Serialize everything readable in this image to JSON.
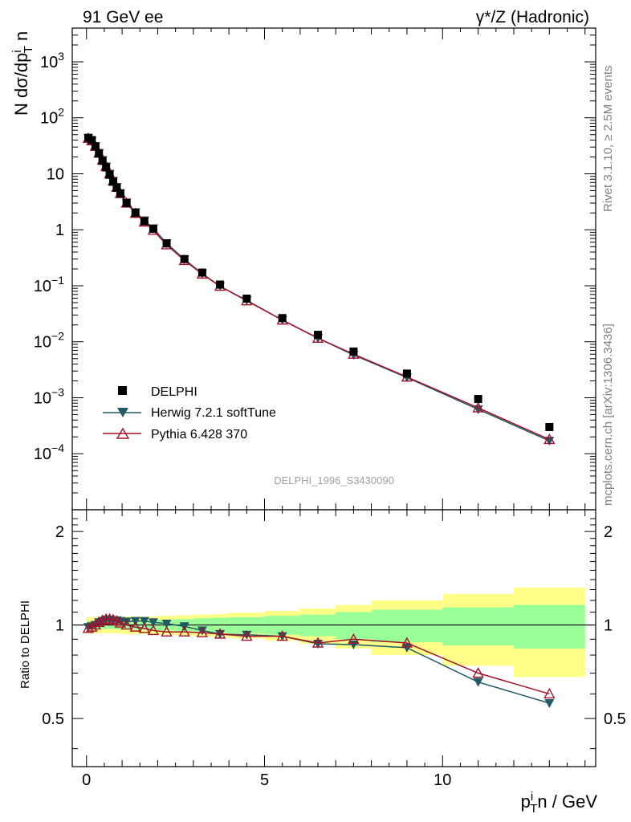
{
  "header": {
    "left_title": "91 GeV ee",
    "right_title": "γ*/Z (Hadronic)"
  },
  "side_labels": {
    "rivet": "Rivet 3.1.10, ≥ 2.5M events",
    "mcplots": "mcplots.cern.ch [arXiv:1306.3436]"
  },
  "analysis_id": "DELPHI_1996_S3430090",
  "colors": {
    "data": "#000000",
    "herwig": "#1f5a66",
    "pythia": "#a3112a",
    "band_inner": "#99ff99",
    "band_outer": "#ffff88"
  },
  "chart_data": [
    {
      "type": "scatter",
      "title": "",
      "ylabel": "N dσ/dp_T^i n",
      "yscale": "log",
      "ylim": [
        1e-05,
        4000
      ],
      "xlim": [
        -0.4,
        14.3
      ],
      "ytick_labels": [
        "10^-4",
        "10^-3",
        "10^-2",
        "10^-1",
        "1",
        "10",
        "10^2",
        "10^3"
      ],
      "legend_position": "lower-left",
      "series": [
        {
          "name": "DELPHI",
          "marker": "square",
          "x": [
            0.05,
            0.15,
            0.25,
            0.35,
            0.45,
            0.55,
            0.65,
            0.75,
            0.85,
            0.95,
            1.125,
            1.375,
            1.625,
            1.875,
            2.25,
            2.75,
            3.25,
            3.75,
            4.5,
            5.5,
            6.5,
            7.5,
            9.0,
            11.0,
            13.0
          ],
          "y": [
            44,
            40,
            31,
            23,
            17,
            13,
            9.6,
            7.2,
            5.6,
            4.4,
            3.0,
            2.0,
            1.42,
            1.04,
            0.57,
            0.3,
            0.172,
            0.105,
            0.059,
            0.0265,
            0.0133,
            0.0067,
            0.0027,
            0.00095,
            0.0003
          ]
        },
        {
          "name": "Herwig 7.2.1 softTune",
          "marker": "triangle-down",
          "x": [
            0.05,
            0.15,
            0.25,
            0.35,
            0.45,
            0.55,
            0.65,
            0.75,
            0.85,
            0.95,
            1.125,
            1.375,
            1.625,
            1.875,
            2.25,
            2.75,
            3.25,
            3.75,
            4.5,
            5.5,
            6.5,
            7.5,
            9.0,
            11.0,
            13.0
          ],
          "y": [
            43,
            39,
            31,
            23.5,
            17.5,
            13.5,
            10,
            7.45,
            5.8,
            4.5,
            3.07,
            2.06,
            1.47,
            1.06,
            0.575,
            0.297,
            0.165,
            0.098,
            0.055,
            0.0244,
            0.0116,
            0.0058,
            0.0023,
            0.00062,
            0.00017
          ]
        },
        {
          "name": "Pythia 6.428 370",
          "marker": "triangle-up-open",
          "x": [
            0.05,
            0.15,
            0.25,
            0.35,
            0.45,
            0.55,
            0.65,
            0.75,
            0.85,
            0.95,
            1.125,
            1.375,
            1.625,
            1.875,
            2.25,
            2.75,
            3.25,
            3.75,
            4.5,
            5.5,
            6.5,
            7.5,
            9.0,
            11.0,
            13.0
          ],
          "y": [
            43,
            39,
            31,
            23.5,
            17.6,
            13.6,
            10,
            7.45,
            5.75,
            4.45,
            3.0,
            1.96,
            1.38,
            0.98,
            0.54,
            0.284,
            0.162,
            0.098,
            0.054,
            0.0244,
            0.0116,
            0.006,
            0.00235,
            0.00066,
            0.00018
          ]
        }
      ]
    },
    {
      "type": "line",
      "title": "",
      "xlabel": "p_T^i n / GeV",
      "ylabel": "Ratio to DELPHI",
      "ylim": [
        0.35,
        2.35
      ],
      "xlim": [
        -0.4,
        14.3
      ],
      "xtick_labels": [
        "0",
        "5",
        "10"
      ],
      "ytick_labels": [
        "0.5",
        "1",
        "2"
      ],
      "reference_line": 1,
      "bands": {
        "x_edges": [
          0,
          0.1,
          0.2,
          0.3,
          0.4,
          0.5,
          0.6,
          0.7,
          0.8,
          0.9,
          1.0,
          1.25,
          1.5,
          1.75,
          2.0,
          2.5,
          3.0,
          3.5,
          4.0,
          5.0,
          6.0,
          7.0,
          8.0,
          10.0,
          12.0,
          14.0
        ],
        "inner": [
          0.03,
          0.03,
          0.03,
          0.03,
          0.03,
          0.03,
          0.03,
          0.03,
          0.03,
          0.03,
          0.035,
          0.035,
          0.035,
          0.035,
          0.04,
          0.045,
          0.05,
          0.055,
          0.06,
          0.07,
          0.08,
          0.1,
          0.12,
          0.14,
          0.16
        ],
        "outer": [
          0.06,
          0.06,
          0.06,
          0.06,
          0.06,
          0.06,
          0.06,
          0.06,
          0.06,
          0.06,
          0.065,
          0.065,
          0.065,
          0.065,
          0.07,
          0.075,
          0.08,
          0.085,
          0.095,
          0.11,
          0.13,
          0.16,
          0.2,
          0.26,
          0.32
        ]
      },
      "series": [
        {
          "name": "Herwig 7.2.1 softTune",
          "marker": "triangle-down",
          "x": [
            0.05,
            0.15,
            0.25,
            0.35,
            0.45,
            0.55,
            0.65,
            0.75,
            0.85,
            0.95,
            1.125,
            1.375,
            1.625,
            1.875,
            2.25,
            2.75,
            3.25,
            3.75,
            4.5,
            5.5,
            6.5,
            7.5,
            9.0,
            11.0,
            13.0
          ],
          "y": [
            0.985,
            0.99,
            1.0,
            1.02,
            1.03,
            1.04,
            1.04,
            1.035,
            1.035,
            1.03,
            1.025,
            1.03,
            1.03,
            1.02,
            1.01,
            0.99,
            0.96,
            0.935,
            0.93,
            0.92,
            0.87,
            0.865,
            0.845,
            0.655,
            0.56
          ]
        },
        {
          "name": "Pythia 6.428 370",
          "marker": "triangle-up-open",
          "x": [
            0.05,
            0.15,
            0.25,
            0.35,
            0.45,
            0.55,
            0.65,
            0.75,
            0.85,
            0.95,
            1.125,
            1.375,
            1.625,
            1.875,
            2.25,
            2.75,
            3.25,
            3.75,
            4.5,
            5.5,
            6.5,
            7.5,
            9.0,
            11.0,
            13.0
          ],
          "y": [
            0.975,
            0.985,
            1.0,
            1.02,
            1.035,
            1.045,
            1.045,
            1.04,
            1.03,
            1.015,
            1.0,
            0.985,
            0.975,
            0.96,
            0.95,
            0.95,
            0.945,
            0.935,
            0.92,
            0.92,
            0.875,
            0.9,
            0.875,
            0.7,
            0.6
          ]
        }
      ]
    }
  ]
}
